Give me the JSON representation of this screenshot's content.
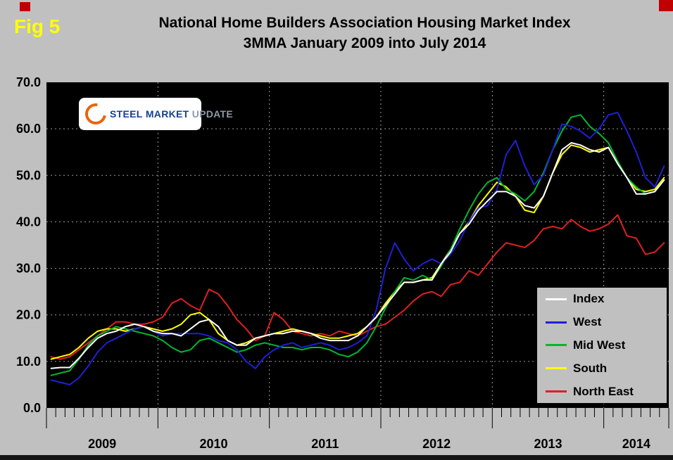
{
  "logo": {
    "word1": "STEEL",
    "word2": "MARKET",
    "word3": "UPDATE"
  },
  "chart_data": {
    "type": "line",
    "fig_label": "Fig 5",
    "title": "National Home Builders Association Housing Market Index",
    "subtitle": "3MMA January 2009 into July 2014",
    "xlabel": "",
    "ylabel": "",
    "x_unit": "month",
    "x_range": [
      "2009-01",
      "2014-07"
    ],
    "x_years": [
      {
        "label": "2009",
        "months": 12
      },
      {
        "label": "2010",
        "months": 12
      },
      {
        "label": "2011",
        "months": 12
      },
      {
        "label": "2012",
        "months": 12
      },
      {
        "label": "2013",
        "months": 12
      },
      {
        "label": "2014",
        "months": 7
      }
    ],
    "ylim": [
      0,
      70
    ],
    "yticks": [
      0,
      10,
      20,
      30,
      40,
      50,
      60,
      70
    ],
    "ytick_labels": [
      "0.0",
      "10.0",
      "20.0",
      "30.0",
      "40.0",
      "50.0",
      "60.0",
      "70.0"
    ],
    "grid": {
      "style": "dotted",
      "color": "#9A9A9A"
    },
    "plot_background": "#000000",
    "page_background": "#C0C0C0",
    "legend": {
      "position": "inside-bottom-right"
    },
    "series": [
      {
        "name": "Index",
        "color": "#FFFFFF",
        "values": [
          8.5,
          8.7,
          8.7,
          10.7,
          13,
          15,
          16,
          16.5,
          17.5,
          18,
          17.5,
          16.5,
          16,
          16,
          15.5,
          17,
          18.5,
          19,
          17.5,
          14.5,
          13.5,
          13.5,
          15,
          15.5,
          16,
          16,
          16.5,
          16.5,
          16,
          15,
          14.5,
          14.5,
          14.5,
          15.5,
          17.5,
          19.5,
          22,
          24.5,
          27,
          27,
          27.5,
          27.5,
          31,
          33.5,
          37.5,
          39.5,
          42.5,
          44.5,
          46.5,
          46.5,
          45.5,
          43.5,
          43,
          45.5,
          50.5,
          55.5,
          57,
          56.5,
          55.5,
          55,
          56,
          52.5,
          49.5,
          46,
          46,
          46.5,
          49
        ]
      },
      {
        "name": "West",
        "color": "#1F1FD6",
        "values": [
          6,
          5.5,
          5,
          6.5,
          9,
          12,
          14,
          15,
          16,
          17,
          17.5,
          16.5,
          15.5,
          16,
          16,
          16,
          16,
          15.5,
          14.5,
          14,
          12.5,
          10,
          8.5,
          11,
          12.5,
          13.5,
          14,
          13,
          13.5,
          14,
          13.5,
          12.5,
          13,
          14,
          15.5,
          21,
          30,
          35.5,
          32,
          29.5,
          31,
          32,
          31,
          33,
          36,
          40,
          43,
          43.5,
          47,
          54.5,
          57.5,
          52,
          48,
          50,
          55.5,
          61,
          60.5,
          59.5,
          58,
          60,
          63,
          63.5,
          59.5,
          55,
          49.5,
          47.5,
          52
        ]
      },
      {
        "name": "Mid West",
        "color": "#00B830",
        "values": [
          7,
          7.5,
          8,
          10.5,
          13.5,
          15.5,
          16.5,
          17.5,
          17,
          16.5,
          16,
          15.5,
          14.5,
          13,
          12,
          12.5,
          14.5,
          15,
          14,
          13,
          12,
          12.5,
          13.5,
          14,
          13.5,
          13,
          13,
          12.5,
          13,
          13,
          12.5,
          11.5,
          11,
          12,
          14,
          17.5,
          21.5,
          25,
          28,
          27.5,
          28.5,
          27.5,
          30.5,
          34,
          38.5,
          42.5,
          46,
          48.5,
          49.5,
          47,
          46,
          44.5,
          46.5,
          50.5,
          55.5,
          59.5,
          62.5,
          63,
          60.5,
          59,
          57,
          53,
          49.5,
          47.5,
          46,
          46.5,
          49
        ]
      },
      {
        "name": "South",
        "color": "#FFFF00",
        "values": [
          10.5,
          11,
          11.5,
          13,
          15,
          16.5,
          17,
          17,
          16.5,
          17,
          17.5,
          17,
          16.5,
          17,
          18,
          20,
          20.5,
          19,
          16,
          14.5,
          13.5,
          14,
          15,
          15.5,
          16,
          16.5,
          17,
          16.5,
          16,
          15.5,
          15,
          15,
          15.5,
          16,
          17.5,
          19.5,
          22.5,
          25,
          27,
          27,
          27.5,
          28,
          31,
          34,
          37.5,
          40,
          43.5,
          46,
          48.5,
          47.5,
          45.5,
          42.5,
          42,
          45.5,
          50.5,
          54.5,
          56.5,
          56,
          55,
          55.5,
          56,
          52.5,
          49.5,
          47,
          46.5,
          47,
          49.5
        ]
      },
      {
        "name": "North East",
        "color": "#E02020",
        "values": [
          11,
          10.5,
          11,
          12.5,
          14,
          15.5,
          17,
          18.5,
          18.5,
          18,
          18,
          18.5,
          19.5,
          22.5,
          23.5,
          22,
          21,
          25.5,
          24.5,
          22,
          19,
          17,
          14.5,
          15.5,
          20.5,
          19,
          16.5,
          16,
          15.5,
          16,
          15.5,
          16.5,
          16,
          15.5,
          16.5,
          17.5,
          18,
          19.5,
          21,
          23,
          24.5,
          25,
          24,
          26.5,
          27,
          29.5,
          28.5,
          31,
          33.5,
          35.5,
          35,
          34.5,
          36,
          38.5,
          39,
          38.5,
          40.5,
          39,
          38,
          38.5,
          39.5,
          41.5,
          37,
          36.5,
          33,
          33.5,
          35.5
        ]
      }
    ]
  }
}
